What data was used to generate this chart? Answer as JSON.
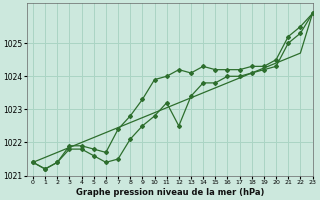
{
  "xlabel": "Graphe pression niveau de la mer (hPa)",
  "bg_color": "#cce8dd",
  "grid_color": "#aad4c4",
  "line_color": "#2d6e2d",
  "marker_color": "#2d6e2d",
  "x": [
    0,
    1,
    2,
    3,
    4,
    5,
    6,
    7,
    8,
    9,
    10,
    11,
    12,
    13,
    14,
    15,
    16,
    17,
    18,
    19,
    20,
    21,
    22,
    23
  ],
  "y_upper": [
    1021.4,
    1021.2,
    1021.4,
    1021.9,
    1021.9,
    1021.8,
    1021.7,
    1022.4,
    1022.8,
    1023.3,
    1023.9,
    1024.0,
    1024.2,
    1024.1,
    1024.3,
    1024.2,
    1024.2,
    1024.2,
    1024.3,
    1024.3,
    1024.5,
    1025.2,
    1025.5,
    1025.9
  ],
  "y_lower": [
    1021.4,
    1021.2,
    1021.4,
    1021.8,
    1021.8,
    1021.6,
    1021.4,
    1021.5,
    1022.1,
    1022.5,
    1022.8,
    1023.2,
    1022.5,
    1023.4,
    1023.8,
    1023.8,
    1024.0,
    1024.0,
    1024.1,
    1024.2,
    1024.3,
    1025.0,
    1025.3,
    1025.9
  ],
  "y_linear": [
    1021.4,
    1021.55,
    1021.7,
    1021.85,
    1022.0,
    1022.15,
    1022.3,
    1022.45,
    1022.6,
    1022.75,
    1022.9,
    1023.05,
    1023.2,
    1023.35,
    1023.5,
    1023.65,
    1023.8,
    1023.95,
    1024.1,
    1024.25,
    1024.4,
    1024.55,
    1024.7,
    1025.9
  ],
  "ylim": [
    1021.0,
    1026.2
  ],
  "xlim": [
    -0.5,
    23
  ],
  "yticks": [
    1021,
    1022,
    1023,
    1024,
    1025
  ],
  "xticks": [
    0,
    1,
    2,
    3,
    4,
    5,
    6,
    7,
    8,
    9,
    10,
    11,
    12,
    13,
    14,
    15,
    16,
    17,
    18,
    19,
    20,
    21,
    22,
    23
  ]
}
